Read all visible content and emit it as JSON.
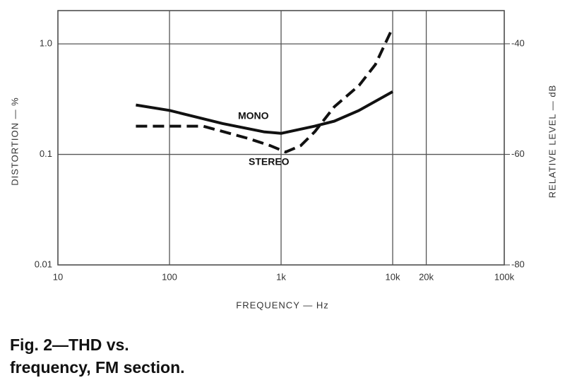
{
  "chart_data": {
    "type": "line",
    "y_label": "DISTORTION — %",
    "y2_label": "RELATIVE LEVEL — dB",
    "x_label": "FREQUENCY — Hz",
    "caption": [
      "Fig. 2—THD vs.",
      "frequency, FM section."
    ],
    "x_log": true,
    "y_log": true,
    "grid": true,
    "xlim": [
      10,
      100000
    ],
    "xticks": [
      10,
      100,
      {
        "value": 1000,
        "label": "1k"
      },
      {
        "value": 10000,
        "label": "10k"
      },
      {
        "value": 20000,
        "label": "20k"
      },
      {
        "value": 100000,
        "label": "100k"
      }
    ],
    "ylim": [
      0.01,
      2
    ],
    "yticks": [
      0.01,
      0.1,
      {
        "value": 1,
        "label": "1.0"
      }
    ],
    "y2lim": [
      -80,
      -34
    ],
    "y2ticks": [
      -40,
      -60,
      -80
    ],
    "series": [
      {
        "name": "MONO",
        "color": "#111111",
        "dash": false,
        "x": [
          50,
          100,
          300,
          700,
          1000,
          2000,
          3000,
          5000,
          10000
        ],
        "values": [
          0.28,
          0.25,
          0.19,
          0.16,
          0.155,
          0.18,
          0.2,
          0.25,
          0.37
        ]
      },
      {
        "name": "STEREO",
        "color": "#111111",
        "dash": true,
        "x": [
          50,
          200,
          500,
          800,
          1100,
          1500,
          2000,
          3000,
          5000,
          7000,
          10000
        ],
        "values": [
          0.18,
          0.18,
          0.14,
          0.12,
          0.105,
          0.12,
          0.16,
          0.27,
          0.42,
          0.65,
          1.4
        ]
      }
    ]
  }
}
